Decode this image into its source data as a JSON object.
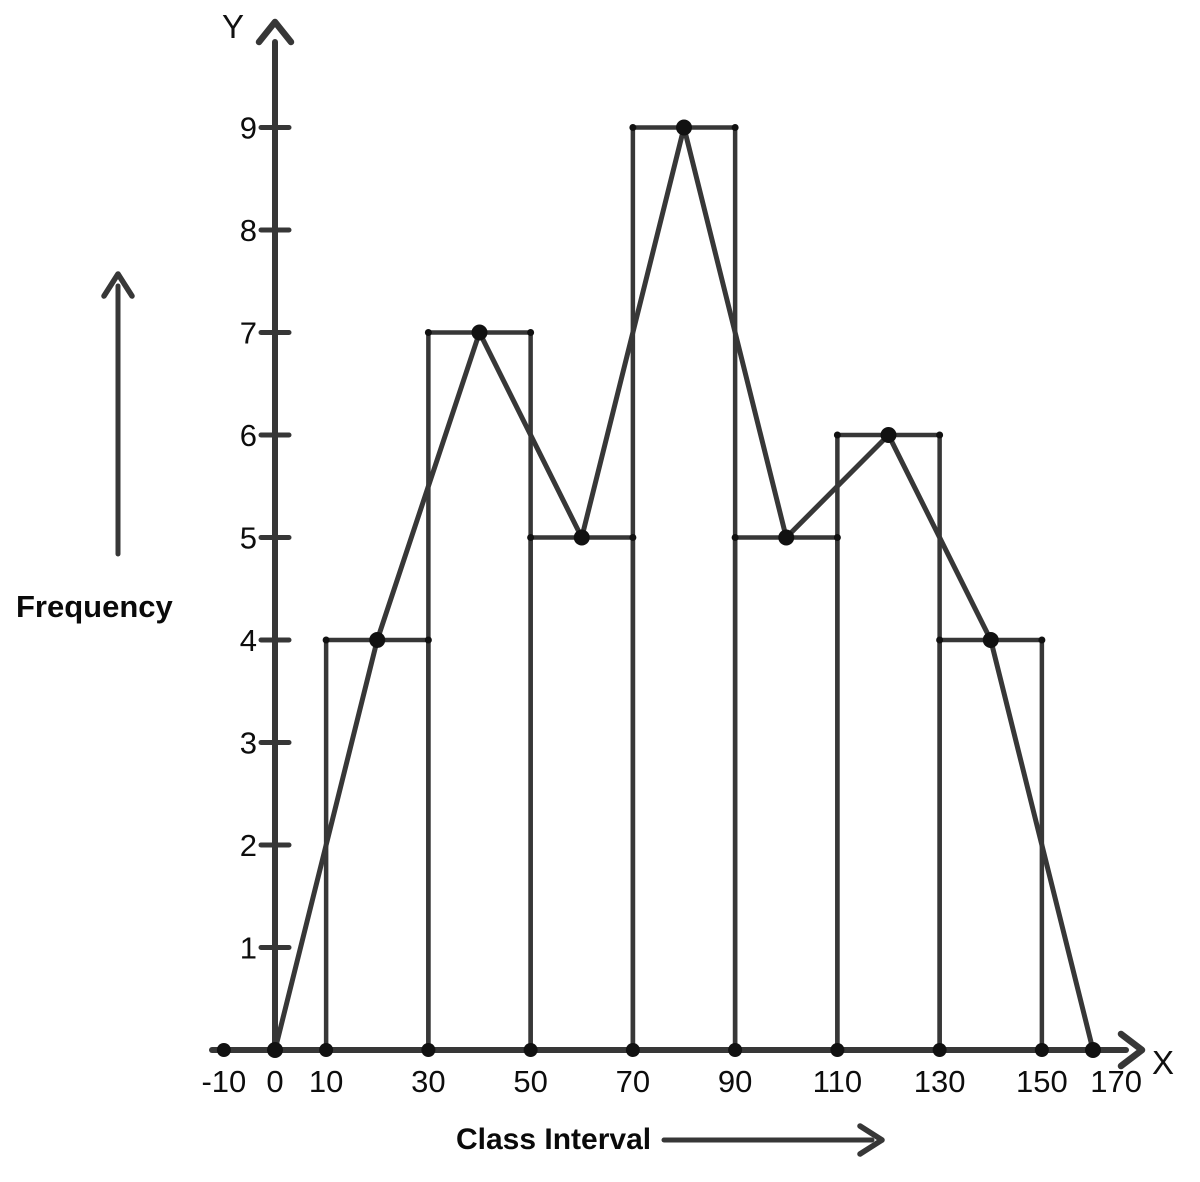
{
  "chart_data": {
    "type": "bar",
    "subtype": "histogram-with-frequency-polygon",
    "title": "",
    "xlabel": "Class Interval",
    "ylabel": "Frequency",
    "x_axis_letter": "X",
    "y_axis_letter": "Y",
    "grid": false,
    "legend": false,
    "xlim": [
      -10,
      175
    ],
    "ylim": [
      0,
      10
    ],
    "x_tick_labels": [
      "-10",
      "0",
      "10",
      "30",
      "50",
      "70",
      "90",
      "110",
      "130",
      "150",
      "170"
    ],
    "x_tick_values": [
      -10,
      0,
      10,
      30,
      50,
      70,
      90,
      110,
      130,
      150,
      170
    ],
    "x_axis_dot_values": [
      -10,
      0,
      10,
      30,
      50,
      70,
      90,
      110,
      130,
      150
    ],
    "y_tick_values": [
      1,
      2,
      3,
      4,
      5,
      6,
      7,
      8,
      9
    ],
    "categories": [
      "10-30",
      "30-50",
      "50-70",
      "70-90",
      "90-110",
      "110-130",
      "130-150"
    ],
    "values": [
      4,
      7,
      5,
      9,
      5,
      6,
      4
    ],
    "bars": [
      {
        "class_interval": "10-30",
        "x0": 10,
        "x1": 30,
        "frequency": 4
      },
      {
        "class_interval": "30-50",
        "x0": 30,
        "x1": 50,
        "frequency": 7
      },
      {
        "class_interval": "50-70",
        "x0": 50,
        "x1": 70,
        "frequency": 5
      },
      {
        "class_interval": "70-90",
        "x0": 70,
        "x1": 90,
        "frequency": 9
      },
      {
        "class_interval": "90-110",
        "x0": 90,
        "x1": 110,
        "frequency": 5
      },
      {
        "class_interval": "110-130",
        "x0": 110,
        "x1": 130,
        "frequency": 6
      },
      {
        "class_interval": "130-150",
        "x0": 130,
        "x1": 150,
        "frequency": 4
      }
    ],
    "frequency_polygon": {
      "points": [
        [
          0,
          0
        ],
        [
          20,
          4
        ],
        [
          40,
          7
        ],
        [
          60,
          5
        ],
        [
          80,
          9
        ],
        [
          100,
          5
        ],
        [
          120,
          6
        ],
        [
          140,
          4
        ],
        [
          160,
          0
        ]
      ]
    },
    "colors": {
      "line": "#373737",
      "marker": "#111111",
      "text": "#0d0d0d",
      "background": "#ffffff"
    }
  }
}
